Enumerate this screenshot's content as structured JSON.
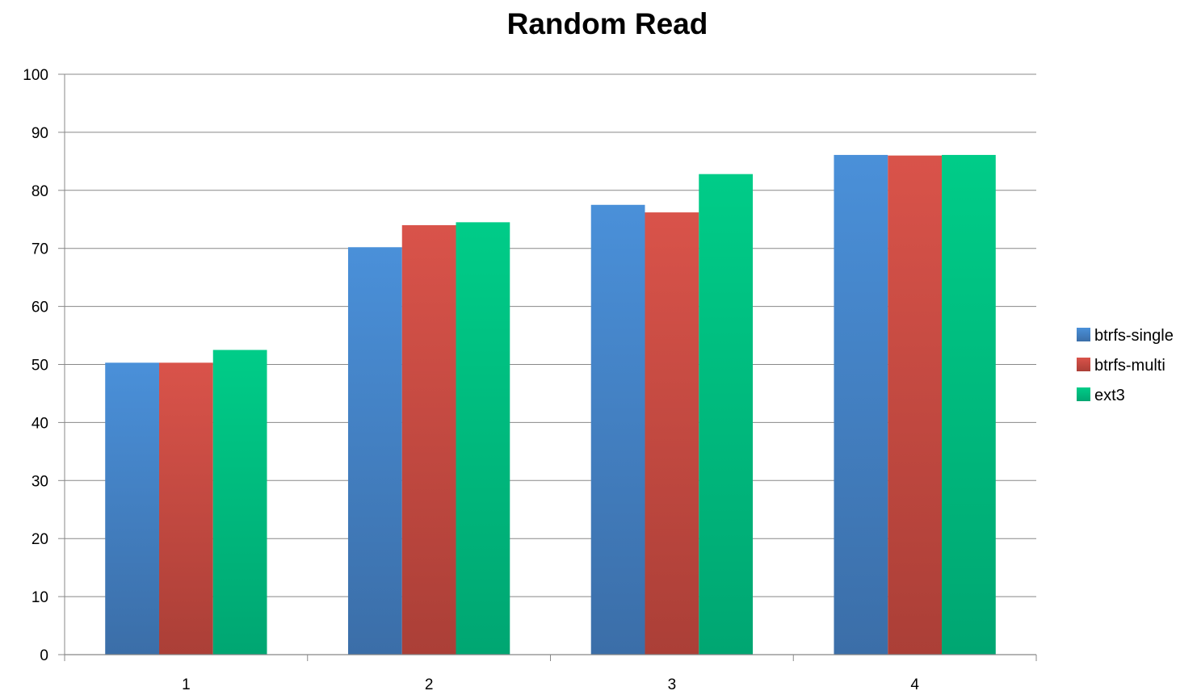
{
  "chart_data": {
    "type": "bar",
    "title": "Random Read",
    "xlabel": "",
    "ylabel": "",
    "categories": [
      "1",
      "2",
      "3",
      "4"
    ],
    "series": [
      {
        "name": "btrfs-single",
        "values": [
          50.3,
          70.2,
          77.5,
          86.1
        ]
      },
      {
        "name": "btrfs-multi",
        "values": [
          50.3,
          74.0,
          76.2,
          86.0
        ]
      },
      {
        "name": "ext3",
        "values": [
          52.5,
          74.5,
          82.8,
          86.1
        ]
      }
    ],
    "ylim": [
      0,
      100
    ],
    "yticks": [
      "0",
      "10",
      "20",
      "30",
      "40",
      "50",
      "60",
      "70",
      "80",
      "90",
      "100"
    ],
    "grid": true,
    "legend_position": "right"
  },
  "colors": {
    "btrfs-single": [
      "#4a90d9",
      "#3b6ea8"
    ],
    "btrfs-multi": [
      "#d9534a",
      "#ab3f37"
    ],
    "ext3": [
      "#00cc88",
      "#00a672"
    ],
    "grid": "#888888",
    "axis": "#888888"
  }
}
